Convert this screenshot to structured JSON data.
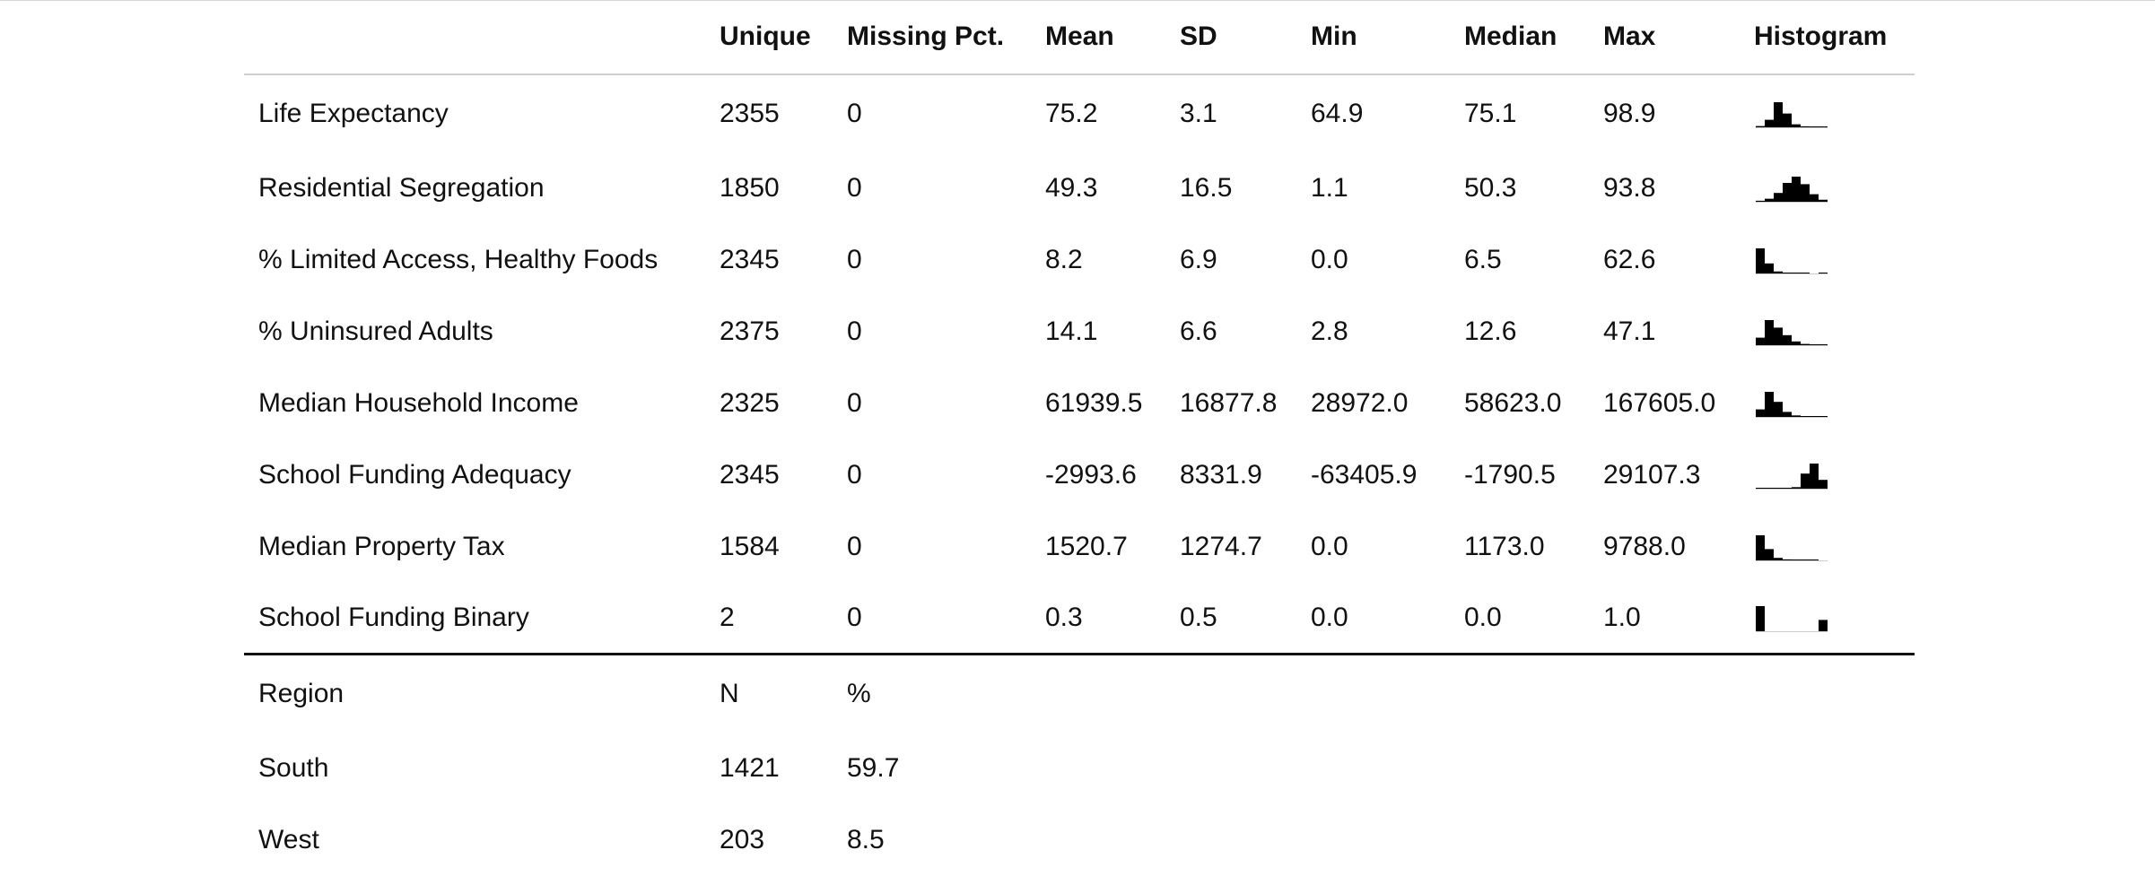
{
  "headers": [
    "",
    "Unique",
    "Missing Pct.",
    "Mean",
    "SD",
    "Min",
    "Median",
    "Max",
    "Histogram"
  ],
  "rows": [
    {
      "name": "Life Expectancy",
      "unique": "2355",
      "missing": "0",
      "mean": "75.2",
      "sd": "3.1",
      "min": "64.9",
      "median": "75.1",
      "max": "98.9",
      "hist": [
        0.05,
        0.3,
        1.0,
        0.55,
        0.12,
        0.04,
        0.02,
        0.01
      ]
    },
    {
      "name": "Residential Segregation",
      "unique": "1850",
      "missing": "0",
      "mean": "49.3",
      "sd": "16.5",
      "min": "1.1",
      "median": "50.3",
      "max": "93.8",
      "hist": [
        0.04,
        0.12,
        0.35,
        0.75,
        1.0,
        0.7,
        0.3,
        0.08
      ]
    },
    {
      "name": "% Limited Access, Healthy Foods",
      "unique": "2345",
      "missing": "0",
      "mean": "8.2",
      "sd": "6.9",
      "min": "0.0",
      "median": "6.5",
      "max": "62.6",
      "hist": [
        1.0,
        0.4,
        0.08,
        0.03,
        0.01,
        0.01,
        0.0,
        0.01
      ]
    },
    {
      "name": "% Uninsured Adults",
      "unique": "2375",
      "missing": "0",
      "mean": "14.1",
      "sd": "6.6",
      "min": "2.8",
      "median": "12.6",
      "max": "47.1",
      "hist": [
        0.3,
        1.0,
        0.7,
        0.4,
        0.15,
        0.05,
        0.02,
        0.01
      ]
    },
    {
      "name": "Median Household Income",
      "unique": "2325",
      "missing": "0",
      "mean": "61939.5",
      "sd": "16877.8",
      "min": "28972.0",
      "median": "58623.0",
      "max": "167605.0",
      "hist": [
        0.3,
        1.0,
        0.6,
        0.2,
        0.06,
        0.02,
        0.01,
        0.01
      ]
    },
    {
      "name": "School Funding Adequacy",
      "unique": "2345",
      "missing": "0",
      "mean": "-2993.6",
      "sd": "8331.9",
      "min": "-63405.9",
      "median": "-1790.5",
      "max": "29107.3",
      "hist": [
        0.01,
        0.01,
        0.02,
        0.03,
        0.06,
        0.6,
        1.0,
        0.35
      ]
    },
    {
      "name": "Median Property Tax",
      "unique": "1584",
      "missing": "0",
      "mean": "1520.7",
      "sd": "1274.7",
      "min": "0.0",
      "median": "1173.0",
      "max": "9788.0",
      "hist": [
        1.0,
        0.45,
        0.1,
        0.04,
        0.02,
        0.01,
        0.01,
        0.0
      ]
    },
    {
      "name": "School Funding Binary",
      "unique": "2",
      "missing": "0",
      "mean": "0.3",
      "sd": "0.5",
      "min": "0.0",
      "median": "0.0",
      "max": "1.0",
      "hist": [
        1.0,
        0.0,
        0.0,
        0.0,
        0.0,
        0.0,
        0.0,
        0.45
      ]
    }
  ],
  "categorical": {
    "header": {
      "name": "Region",
      "n": "N",
      "pct": "%"
    },
    "rows": [
      {
        "name": "South",
        "n": "1421",
        "pct": "59.7"
      },
      {
        "name": "West",
        "n": "203",
        "pct": "8.5"
      }
    ]
  }
}
